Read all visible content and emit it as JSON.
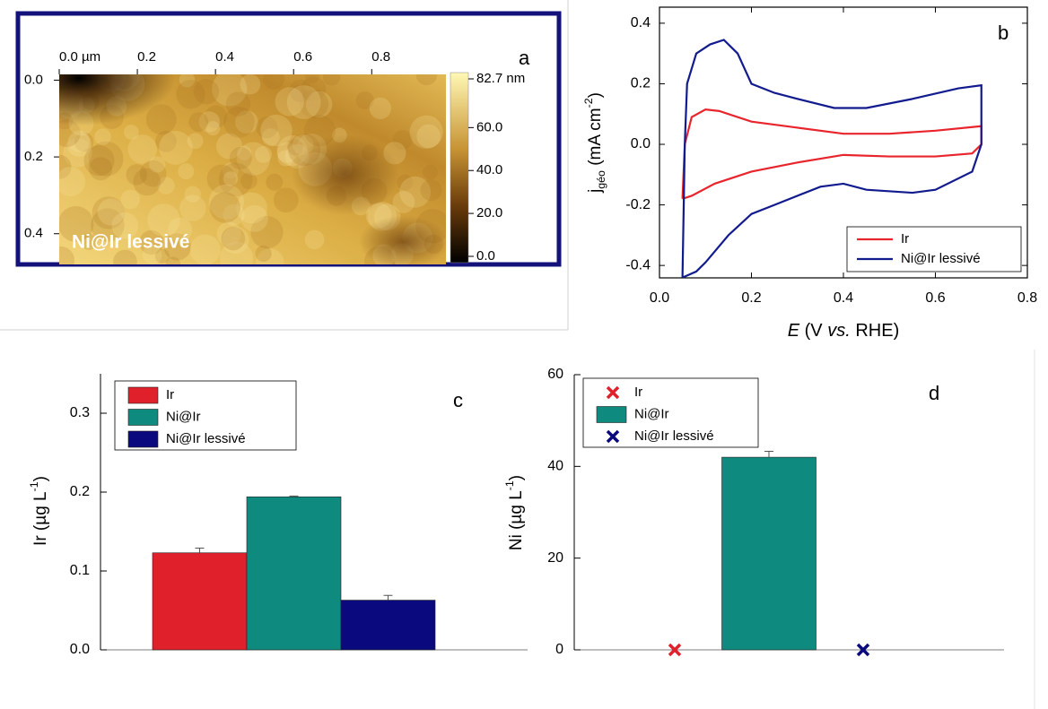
{
  "chart_data": [
    {
      "type": "image",
      "panel": "a",
      "label": "Ni@Ir lessivé",
      "xlim": [
        0,
        0.99
      ],
      "xticks": [
        {
          "value": 0,
          "label": "0.0 µm"
        },
        0.2,
        0.4,
        0.6,
        0.8
      ],
      "ylim": [
        -0.015,
        0.48
      ],
      "yticks": [
        {
          "value": 0,
          "label": "0.0"
        },
        0.2,
        0.4
      ],
      "colorbar": {
        "lim": [
          0,
          82.7
        ],
        "ticks": [
          {
            "value": 82.7,
            "label": "82.7 nm"
          },
          {
            "value": 60,
            "label": "60.0"
          },
          {
            "value": 40,
            "label": "40.0"
          },
          {
            "value": 20,
            "label": "20.0"
          },
          {
            "value": 0,
            "label": "0.0"
          }
        ]
      }
    },
    {
      "type": "line",
      "panel": "b",
      "xlabel": [
        {
          "text": "E",
          "italic": true
        },
        {
          "text": " (V "
        },
        {
          "text": "vs.",
          "italic": true
        },
        {
          "text": " RHE)"
        }
      ],
      "ylabel": [
        {
          "text": "j"
        },
        {
          "text": "géo",
          "shift": "sub"
        },
        {
          "text": " (mA cm"
        },
        {
          "text": "-2",
          "shift": "super"
        },
        {
          "text": ")"
        }
      ],
      "xlim": [
        0,
        0.8
      ],
      "xticks": [
        {
          "value": 0,
          "label": "0.0"
        },
        0.2,
        0.4,
        0.6,
        0.8
      ],
      "ylim": [
        -0.441,
        0.453
      ],
      "yticks": [
        -0.4,
        -0.2,
        {
          "value": 0,
          "label": "0.0"
        },
        0.2,
        0.4
      ],
      "legend": "lower right",
      "series": [
        {
          "name": "Ir",
          "color": "#e8252c",
          "x": [
            0.05,
            0.055,
            0.07,
            0.1,
            0.13,
            0.2,
            0.3,
            0.4,
            0.5,
            0.6,
            0.7,
            0.7,
            0.68,
            0.6,
            0.5,
            0.4,
            0.3,
            0.2,
            0.12,
            0.07,
            0.05
          ],
          "values": [
            -0.18,
            0.0,
            0.09,
            0.115,
            0.11,
            0.075,
            0.055,
            0.035,
            0.035,
            0.045,
            0.06,
            0.0,
            -0.03,
            -0.04,
            -0.04,
            -0.035,
            -0.06,
            -0.09,
            -0.13,
            -0.17,
            -0.18
          ]
        },
        {
          "name": "Ni@Ir lessivé",
          "color": "#121b8e",
          "x": [
            0.05,
            0.055,
            0.06,
            0.08,
            0.11,
            0.14,
            0.17,
            0.2,
            0.25,
            0.3,
            0.38,
            0.45,
            0.55,
            0.65,
            0.7,
            0.7,
            0.68,
            0.6,
            0.55,
            0.45,
            0.4,
            0.35,
            0.25,
            0.2,
            0.15,
            0.1,
            0.08,
            0.05
          ],
          "values": [
            -0.44,
            0.0,
            0.2,
            0.3,
            0.33,
            0.345,
            0.3,
            0.2,
            0.17,
            0.15,
            0.12,
            0.12,
            0.15,
            0.185,
            0.195,
            0.0,
            -0.09,
            -0.15,
            -0.16,
            -0.15,
            -0.13,
            -0.14,
            -0.2,
            -0.23,
            -0.3,
            -0.39,
            -0.42,
            -0.44
          ]
        }
      ]
    },
    {
      "type": "bar",
      "panel": "c",
      "ylabel": [
        {
          "text": "Ir (µg L"
        },
        {
          "text": "-1",
          "shift": "super"
        },
        {
          "text": ")"
        }
      ],
      "categories": [
        null
      ],
      "ylim": [
        0,
        0.35
      ],
      "yticks": [
        {
          "value": 0,
          "label": "0.0"
        },
        0.1,
        0.2,
        0.3
      ],
      "legend": "upper left",
      "series": [
        {
          "name": "Ir",
          "color": "#e0202b",
          "values": [
            0.123
          ],
          "errors": [
            0.006
          ]
        },
        {
          "name": "Ni@Ir",
          "color": "#0e8a7f",
          "values": [
            0.194
          ],
          "errors": [
            0.001
          ]
        },
        {
          "name": "Ni@Ir lessivé",
          "color": "#0a0a7e",
          "values": [
            0.063
          ],
          "errors": [
            0.006
          ]
        }
      ]
    },
    {
      "type": "bar",
      "panel": "d",
      "ylabel": [
        {
          "text": "Ni (µg L"
        },
        {
          "text": "-1",
          "shift": "super"
        },
        {
          "text": ")"
        }
      ],
      "categories": [
        null
      ],
      "ylim": [
        0,
        60
      ],
      "yticks": [
        0,
        20,
        40,
        60
      ],
      "legend": "upper left",
      "series": [
        {
          "name": "Ir",
          "color": "#e0202b",
          "marker": "x",
          "values": [
            0
          ]
        },
        {
          "name": "Ni@Ir",
          "color": "#0e8a7f",
          "values": [
            42
          ],
          "errors": [
            1.3
          ]
        },
        {
          "name": "Ni@Ir lessivé",
          "color": "#0a0a7e",
          "marker": "x",
          "values": [
            0
          ]
        }
      ]
    }
  ]
}
